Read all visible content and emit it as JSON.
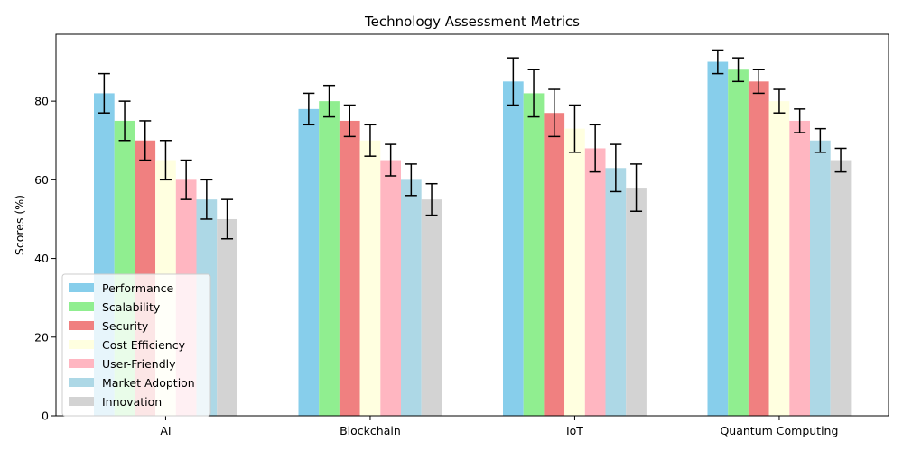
{
  "chart_data": {
    "type": "bar",
    "title": "Technology Assessment Metrics",
    "xlabel": "",
    "ylabel": "Scores (%)",
    "ylim": [
      0,
      97
    ],
    "yticks": [
      0,
      20,
      40,
      60,
      80
    ],
    "categories": [
      "AI",
      "Blockchain",
      "IoT",
      "Quantum Computing"
    ],
    "legend_position": "lower-left",
    "grid": false,
    "series": [
      {
        "name": "Performance",
        "color": "#87CEEB",
        "values": [
          82,
          78,
          85,
          90
        ],
        "errors": [
          5,
          4,
          6,
          3
        ]
      },
      {
        "name": "Scalability",
        "color": "#90EE90",
        "values": [
          75,
          80,
          82,
          88
        ],
        "errors": [
          5,
          4,
          6,
          3
        ]
      },
      {
        "name": "Security",
        "color": "#F08080",
        "values": [
          70,
          75,
          77,
          85
        ],
        "errors": [
          5,
          4,
          6,
          3
        ]
      },
      {
        "name": "Cost Efficiency",
        "color": "#FFFFE0",
        "values": [
          65,
          70,
          73,
          80
        ],
        "errors": [
          5,
          4,
          6,
          3
        ]
      },
      {
        "name": "User-Friendly",
        "color": "#FFB6C1",
        "values": [
          60,
          65,
          68,
          75
        ],
        "errors": [
          5,
          4,
          6,
          3
        ]
      },
      {
        "name": "Market Adoption",
        "color": "#ADD8E6",
        "values": [
          55,
          60,
          63,
          70
        ],
        "errors": [
          5,
          4,
          6,
          3
        ]
      },
      {
        "name": "Innovation",
        "color": "#D3D3D3",
        "values": [
          50,
          55,
          58,
          65
        ],
        "errors": [
          5,
          4,
          6,
          3
        ]
      }
    ]
  }
}
